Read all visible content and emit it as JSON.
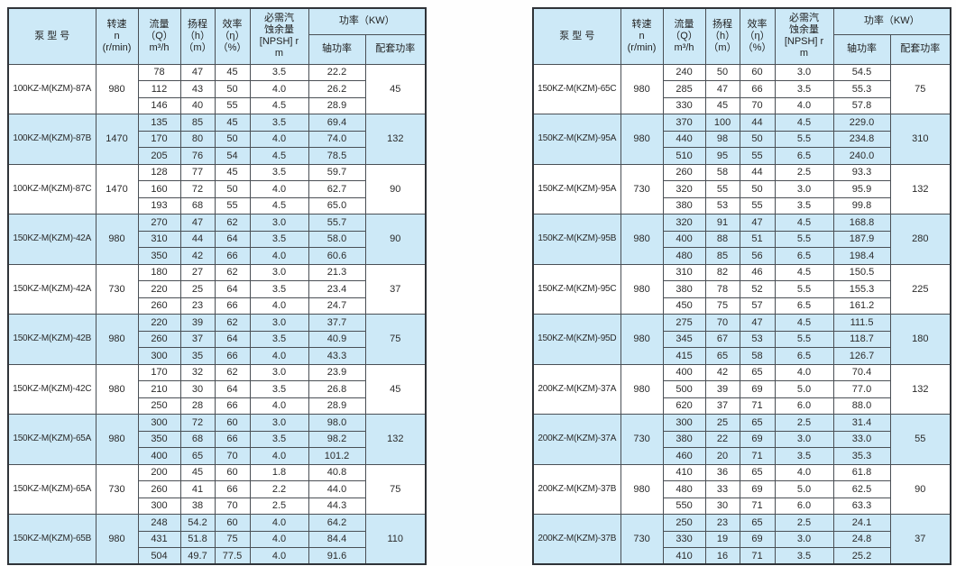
{
  "colors": {
    "row_shaded": "#cde9f7",
    "row_plain": "#ffffff",
    "header_bg": "#cde9f7",
    "grid_line": "#4a4f55",
    "outer_border": "#2f3338",
    "text": "#2b2b2b"
  },
  "header": {
    "model": "泵   型   号",
    "speed": "转速\nn\n(r/min)",
    "flow": "流量\n（Q）\nm³/h",
    "head": "扬程\n（h）\n（m）",
    "efficiency": "效率\n（η）\n（%）",
    "npsh": "必需汽\n蚀余量\n[NPSH] r\nm",
    "power_group": "功率（KW）",
    "shaft_power": "轴功率",
    "matched_power": "配套功率"
  },
  "tables": [
    {
      "name": "left-spec-table",
      "groups": [
        {
          "model": "100KZ-M(KZM)-87A",
          "speed": "980",
          "shaded": false,
          "match": "45",
          "rows": [
            [
              "78",
              "47",
              "45",
              "3.5",
              "22.2"
            ],
            [
              "112",
              "43",
              "50",
              "4.0",
              "26.2"
            ],
            [
              "146",
              "40",
              "55",
              "4.5",
              "28.9"
            ]
          ]
        },
        {
          "model": "100KZ-M(KZM)-87B",
          "speed": "1470",
          "shaded": true,
          "match": "132",
          "rows": [
            [
              "135",
              "85",
              "45",
              "3.5",
              "69.4"
            ],
            [
              "170",
              "80",
              "50",
              "4.0",
              "74.0"
            ],
            [
              "205",
              "76",
              "54",
              "4.5",
              "78.5"
            ]
          ]
        },
        {
          "model": "100KZ-M(KZM)-87C",
          "speed": "1470",
          "shaded": false,
          "match": "90",
          "rows": [
            [
              "128",
              "77",
              "45",
              "3.5",
              "59.7"
            ],
            [
              "160",
              "72",
              "50",
              "4.0",
              "62.7"
            ],
            [
              "193",
              "68",
              "55",
              "4.5",
              "65.0"
            ]
          ]
        },
        {
          "model": "150KZ-M(KZM)-42A",
          "speed": "980",
          "shaded": true,
          "match": "90",
          "rows": [
            [
              "270",
              "47",
              "62",
              "3.0",
              "55.7"
            ],
            [
              "310",
              "44",
              "64",
              "3.5",
              "58.0"
            ],
            [
              "350",
              "42",
              "66",
              "4.0",
              "60.6"
            ]
          ]
        },
        {
          "model": "150KZ-M(KZM)-42A",
          "speed": "730",
          "shaded": false,
          "match": "37",
          "rows": [
            [
              "180",
              "27",
              "62",
              "3.0",
              "21.3"
            ],
            [
              "220",
              "25",
              "64",
              "3.5",
              "23.4"
            ],
            [
              "260",
              "23",
              "66",
              "4.0",
              "24.7"
            ]
          ]
        },
        {
          "model": "150KZ-M(KZM)-42B",
          "speed": "980",
          "shaded": true,
          "match": "75",
          "rows": [
            [
              "220",
              "39",
              "62",
              "3.0",
              "37.7"
            ],
            [
              "260",
              "37",
              "64",
              "3.5",
              "40.9"
            ],
            [
              "300",
              "35",
              "66",
              "4.0",
              "43.3"
            ]
          ]
        },
        {
          "model": "150KZ-M(KZM)-42C",
          "speed": "980",
          "shaded": false,
          "match": "45",
          "rows": [
            [
              "170",
              "32",
              "62",
              "3.0",
              "23.9"
            ],
            [
              "210",
              "30",
              "64",
              "3.5",
              "26.8"
            ],
            [
              "250",
              "28",
              "66",
              "4.0",
              "28.9"
            ]
          ]
        },
        {
          "model": "150KZ-M(KZM)-65A",
          "speed": "980",
          "shaded": true,
          "match": "132",
          "rows": [
            [
              "300",
              "72",
              "60",
              "3.0",
              "98.0"
            ],
            [
              "350",
              "68",
              "66",
              "3.5",
              "98.2"
            ],
            [
              "400",
              "65",
              "70",
              "4.0",
              "101.2"
            ]
          ]
        },
        {
          "model": "150KZ-M(KZM)-65A",
          "speed": "730",
          "shaded": false,
          "match": "75",
          "rows": [
            [
              "200",
              "45",
              "60",
              "1.8",
              "40.8"
            ],
            [
              "260",
              "41",
              "66",
              "2.2",
              "44.0"
            ],
            [
              "300",
              "38",
              "70",
              "2.5",
              "44.3"
            ]
          ]
        },
        {
          "model": "150KZ-M(KZM)-65B",
          "speed": "980",
          "shaded": true,
          "match": "110",
          "rows": [
            [
              "248",
              "54.2",
              "60",
              "4.0",
              "64.2"
            ],
            [
              "431",
              "51.8",
              "75",
              "4.0",
              "84.4"
            ],
            [
              "504",
              "49.7",
              "77.5",
              "4.0",
              "91.6"
            ]
          ]
        }
      ]
    },
    {
      "name": "right-spec-table",
      "groups": [
        {
          "model": "150KZ-M(KZM)-65C",
          "speed": "980",
          "shaded": false,
          "match": "75",
          "rows": [
            [
              "240",
              "50",
              "60",
              "3.0",
              "54.5"
            ],
            [
              "285",
              "47",
              "66",
              "3.5",
              "55.3"
            ],
            [
              "330",
              "45",
              "70",
              "4.0",
              "57.8"
            ]
          ]
        },
        {
          "model": "150KZ-M(KZM)-95A",
          "speed": "980",
          "shaded": true,
          "match": "310",
          "rows": [
            [
              "370",
              "100",
              "44",
              "4.5",
              "229.0"
            ],
            [
              "440",
              "98",
              "50",
              "5.5",
              "234.8"
            ],
            [
              "510",
              "95",
              "55",
              "6.5",
              "240.0"
            ]
          ]
        },
        {
          "model": "150KZ-M(KZM)-95A",
          "speed": "730",
          "shaded": false,
          "match": "132",
          "rows": [
            [
              "260",
              "58",
              "44",
              "2.5",
              "93.3"
            ],
            [
              "320",
              "55",
              "50",
              "3.0",
              "95.9"
            ],
            [
              "380",
              "53",
              "55",
              "3.5",
              "99.8"
            ]
          ]
        },
        {
          "model": "150KZ-M(KZM)-95B",
          "speed": "980",
          "shaded": true,
          "match": "280",
          "rows": [
            [
              "320",
              "91",
              "47",
              "4.5",
              "168.8"
            ],
            [
              "400",
              "88",
              "51",
              "5.5",
              "187.9"
            ],
            [
              "480",
              "85",
              "56",
              "6.5",
              "198.4"
            ]
          ]
        },
        {
          "model": "150KZ-M(KZM)-95C",
          "speed": "980",
          "shaded": false,
          "match": "225",
          "rows": [
            [
              "310",
              "82",
              "46",
              "4.5",
              "150.5"
            ],
            [
              "380",
              "78",
              "52",
              "5.5",
              "155.3"
            ],
            [
              "450",
              "75",
              "57",
              "6.5",
              "161.2"
            ]
          ]
        },
        {
          "model": "150KZ-M(KZM)-95D",
          "speed": "980",
          "shaded": true,
          "match": "180",
          "rows": [
            [
              "275",
              "70",
              "47",
              "4.5",
              "111.5"
            ],
            [
              "345",
              "67",
              "53",
              "5.5",
              "118.7"
            ],
            [
              "415",
              "65",
              "58",
              "6.5",
              "126.7"
            ]
          ]
        },
        {
          "model": "200KZ-M(KZM)-37A",
          "speed": "980",
          "shaded": false,
          "match": "132",
          "rows": [
            [
              "400",
              "42",
              "65",
              "4.0",
              "70.4"
            ],
            [
              "500",
              "39",
              "69",
              "5.0",
              "77.0"
            ],
            [
              "620",
              "37",
              "71",
              "6.0",
              "88.0"
            ]
          ]
        },
        {
          "model": "200KZ-M(KZM)-37A",
          "speed": "730",
          "shaded": true,
          "match": "55",
          "rows": [
            [
              "300",
              "25",
              "65",
              "2.5",
              "31.4"
            ],
            [
              "380",
              "22",
              "69",
              "3.0",
              "33.0"
            ],
            [
              "460",
              "20",
              "71",
              "3.5",
              "35.3"
            ]
          ]
        },
        {
          "model": "200KZ-M(KZM)-37B",
          "speed": "980",
          "shaded": false,
          "match": "90",
          "rows": [
            [
              "410",
              "36",
              "65",
              "4.0",
              "61.8"
            ],
            [
              "480",
              "33",
              "69",
              "5.0",
              "62.5"
            ],
            [
              "550",
              "30",
              "71",
              "6.0",
              "63.3"
            ]
          ]
        },
        {
          "model": "200KZ-M(KZM)-37B",
          "speed": "730",
          "shaded": true,
          "match": "37",
          "rows": [
            [
              "250",
              "23",
              "65",
              "2.5",
              "24.1"
            ],
            [
              "330",
              "19",
              "69",
              "3.0",
              "24.8"
            ],
            [
              "410",
              "16",
              "71",
              "3.5",
              "25.2"
            ]
          ]
        }
      ]
    }
  ]
}
